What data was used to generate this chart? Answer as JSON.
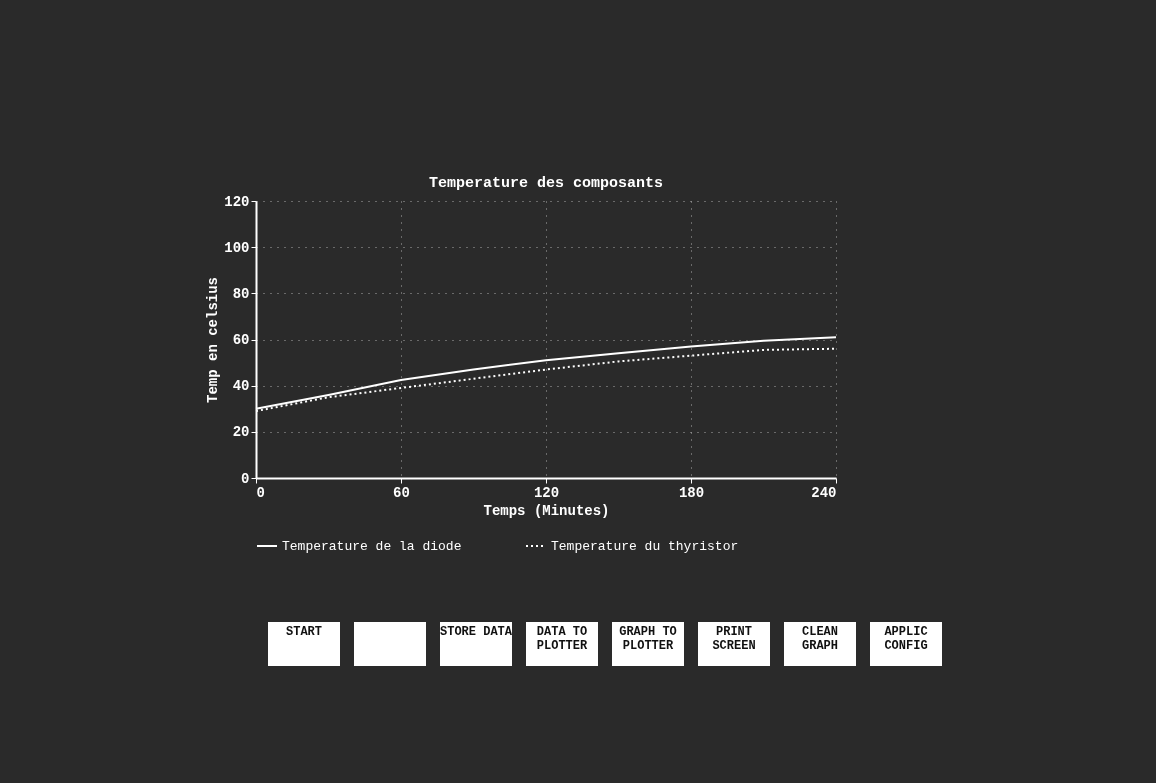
{
  "chart_data": [
    {
      "type": "line",
      "title": "Temperature des composants",
      "xlabel": "Temps (Minutes)",
      "ylabel": "Temp en celsius",
      "x": [
        0,
        30,
        60,
        90,
        120,
        150,
        180,
        210,
        240
      ],
      "series": [
        {
          "name": "Temperature de la diode",
          "color": "#ffffff",
          "line_style": "solid",
          "values": [
            30,
            36,
            42.5,
            47,
            51,
            54,
            57,
            59.5,
            61
          ]
        },
        {
          "name": "Temperature du thyristor",
          "color": "#ffffff",
          "line_style": "dotted",
          "values": [
            29,
            35,
            39,
            43,
            47,
            50.5,
            53,
            55.5,
            56
          ]
        }
      ],
      "xlim": [
        0,
        240
      ],
      "xticks": [
        0,
        60,
        120,
        180,
        240
      ],
      "ylim": [
        0,
        120
      ],
      "yticks": [
        0,
        20,
        40,
        60,
        80,
        100,
        120
      ],
      "grid": true,
      "legend": "bottom"
    },
    {
      "type": "other",
      "annotations": [
        "START",
        "STORE DATA",
        "DATA TO PLOTTER",
        "GRAPH TO PLOTTER",
        "PRINT SCREEN",
        "CLEAN GRAPH",
        "APPLIC CONFIG"
      ]
    }
  ]
}
